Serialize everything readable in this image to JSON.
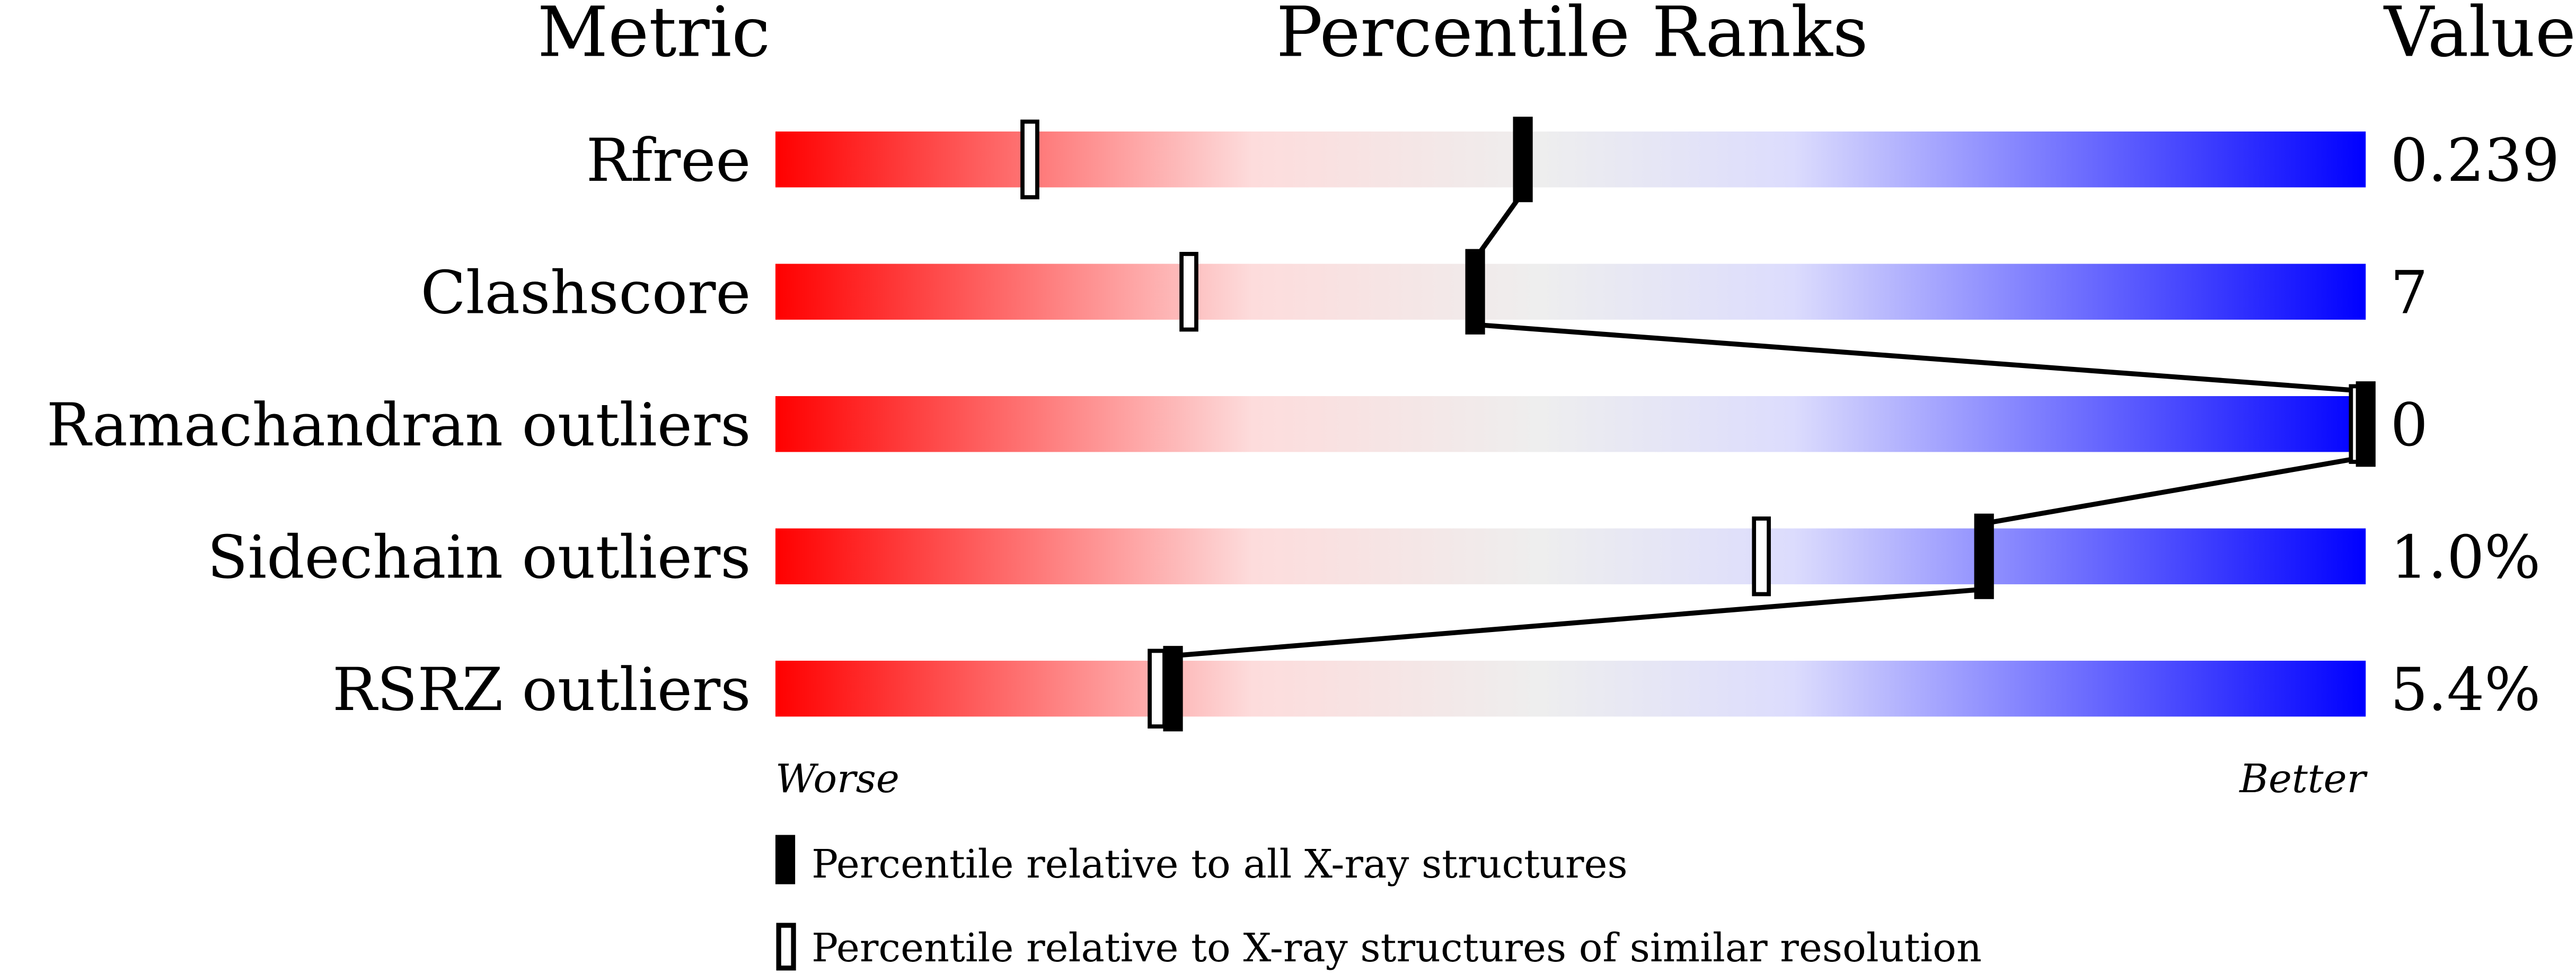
{
  "chart_data": {
    "type": "percentile-slider",
    "headers": {
      "metric": "Metric",
      "ranks": "Percentile Ranks",
      "value": "Value"
    },
    "axis": {
      "left_label": "Worse",
      "right_label": "Better",
      "range": [
        0,
        100
      ]
    },
    "rows": [
      {
        "metric": "Rfree",
        "value": "0.239",
        "percentile_all": 47,
        "percentile_similar": 16
      },
      {
        "metric": "Clashscore",
        "value": "7",
        "percentile_all": 44,
        "percentile_similar": 26
      },
      {
        "metric": "Ramachandran outliers",
        "value": "0",
        "percentile_all": 100,
        "percentile_similar": 100
      },
      {
        "metric": "Sidechain outliers",
        "value": "1.0%",
        "percentile_all": 76,
        "percentile_similar": 62
      },
      {
        "metric": "RSRZ outliers",
        "value": "5.4%",
        "percentile_all": 25,
        "percentile_similar": 24
      }
    ],
    "legend": {
      "filled": "Percentile relative to all X-ray structures",
      "open": "Percentile relative to X-ray structures of similar resolution"
    },
    "colors": {
      "worse": "#ff0000",
      "mid_low": "#fddcdc",
      "mid": "#eeeeee",
      "mid_high": "#dcdcfd",
      "better": "#0000ff"
    }
  }
}
